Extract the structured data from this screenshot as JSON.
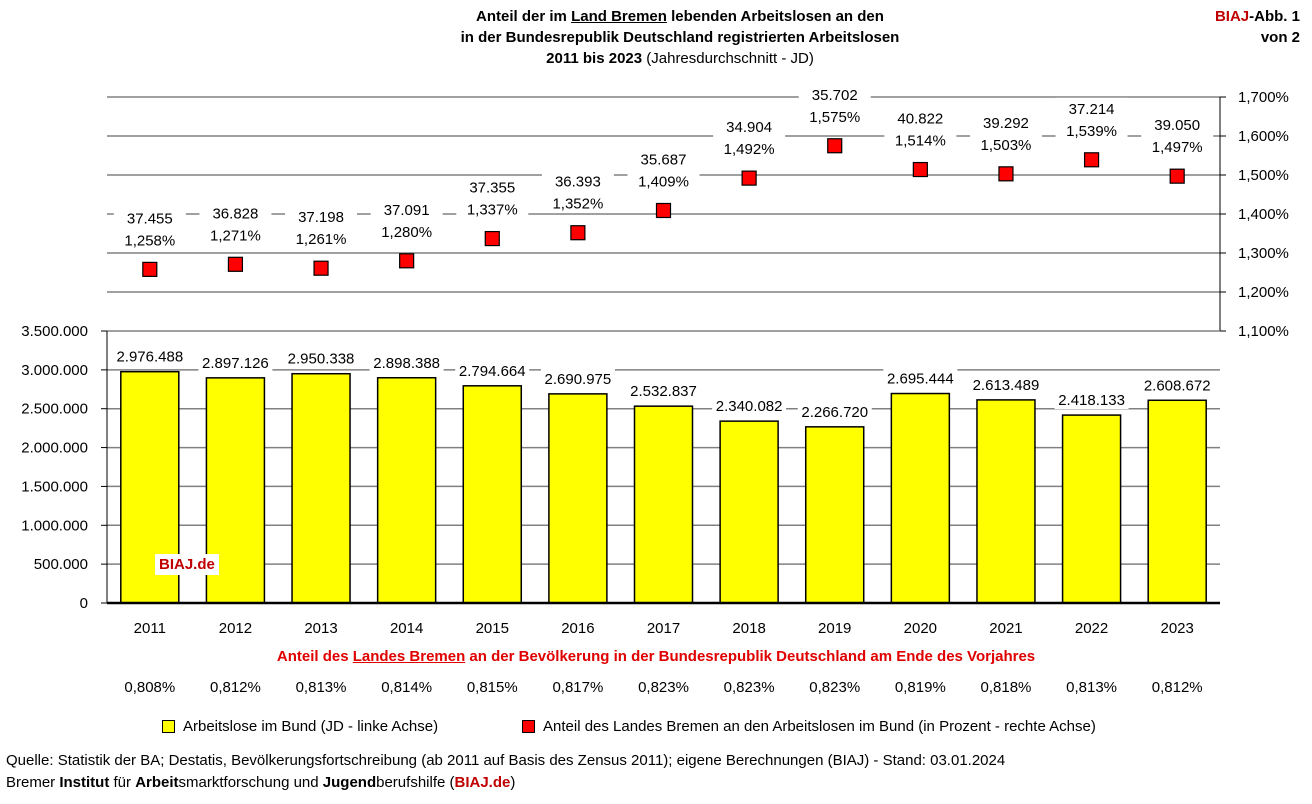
{
  "title": {
    "line1_a": "Anteil der im ",
    "line1_u": "Land Bremen",
    "line1_b": " lebenden Arbeitslosen an den",
    "line2": "in der Bundesrepublik Deutschland registrierten Arbeitslosen",
    "line3_bold": "2011 bis 2023",
    "line3_normal": " (Jahresdurchschnitt - JD)"
  },
  "corner": {
    "brand": "BIAJ",
    "rest1": "-Abb. 1",
    "line2": "von 2"
  },
  "subtitle": {
    "a": "Anteil des ",
    "u": "Landes Bremen",
    "b": " an der Bevölkerung in der Bundesrepublik Deutschland am Ende des Vorjahres"
  },
  "legend": {
    "bars": "Arbeitslose im Bund (JD - linke Achse)",
    "markers": "Anteil des Landes Bremen an den Arbeitslosen im Bund (in Prozent - rechte Achse)"
  },
  "source": {
    "line1": "Quelle: Statistik der BA; Destatis, Bevölkerungsfortschreibung (ab 2011 auf Basis des Zensus 2011); eigene Berechnungen (BIAJ) - Stand: 03.01.2024",
    "l2_a": "Bremer ",
    "l2_b": "Institut",
    "l2_c": " für ",
    "l2_d": "Arbeit",
    "l2_e": "smarktforschung und ",
    "l2_f": "Jugend",
    "l2_g": "berufshilfe (",
    "l2_h": "BIAJ.de",
    "l2_i": ")"
  },
  "watermark": "BIAJ.de",
  "colors": {
    "bar": "#ffff00",
    "marker": "#ff0000",
    "accent": "#c00000",
    "grid": "#808080"
  },
  "chart_data": {
    "type": "bar",
    "categories": [
      "2011",
      "2012",
      "2013",
      "2014",
      "2015",
      "2016",
      "2017",
      "2018",
      "2019",
      "2020",
      "2021",
      "2022",
      "2023"
    ],
    "series": [
      {
        "name": "Arbeitslose im Bund (JD - linke Achse)",
        "axis": "left",
        "values": [
          2976488,
          2897126,
          2950338,
          2898388,
          2794664,
          2690975,
          2532837,
          2340082,
          2266720,
          2695444,
          2613489,
          2418133,
          2608672
        ],
        "labels": [
          "2.976.488",
          "2.897.126",
          "2.950.338",
          "2.898.388",
          "2.794.664",
          "2.690.975",
          "2.532.837",
          "2.340.082",
          "2.266.720",
          "2.695.444",
          "2.613.489",
          "2.418.133",
          "2.608.672"
        ]
      },
      {
        "name": "Anteil des Landes Bremen an den Arbeitslosen im Bund (in Prozent - rechte Achse)",
        "type": "scatter",
        "axis": "right",
        "values": [
          1.258,
          1.271,
          1.261,
          1.28,
          1.337,
          1.352,
          1.409,
          1.492,
          1.575,
          1.514,
          1.503,
          1.539,
          1.497
        ],
        "labels": [
          "1,258%",
          "1,271%",
          "1,261%",
          "1,280%",
          "1,337%",
          "1,352%",
          "1,409%",
          "1,492%",
          "1,575%",
          "1,514%",
          "1,503%",
          "1,539%",
          "1,497%"
        ],
        "counts": [
          "37.455",
          "36.828",
          "37.198",
          "37.091",
          "37.355",
          "36.393",
          "35.687",
          "34.904",
          "35.702",
          "40.822",
          "39.292",
          "37.214",
          "39.050"
        ]
      }
    ],
    "population_share_labels": [
      "0,808%",
      "0,812%",
      "0,813%",
      "0,814%",
      "0,815%",
      "0,817%",
      "0,823%",
      "0,823%",
      "0,823%",
      "0,819%",
      "0,818%",
      "0,813%",
      "0,812%"
    ],
    "left_axis": {
      "ylim": [
        0,
        3500000
      ],
      "ticks": [
        "0",
        "500.000",
        "1.000.000",
        "1.500.000",
        "2.000.000",
        "2.500.000",
        "3.000.000",
        "3.500.000"
      ]
    },
    "right_axis": {
      "ylim": [
        1.1,
        1.7
      ],
      "ticks": [
        "1,100%",
        "1,200%",
        "1,300%",
        "1,400%",
        "1,500%",
        "1,600%",
        "1,700%"
      ]
    },
    "grid": true,
    "legend_position": "bottom"
  }
}
